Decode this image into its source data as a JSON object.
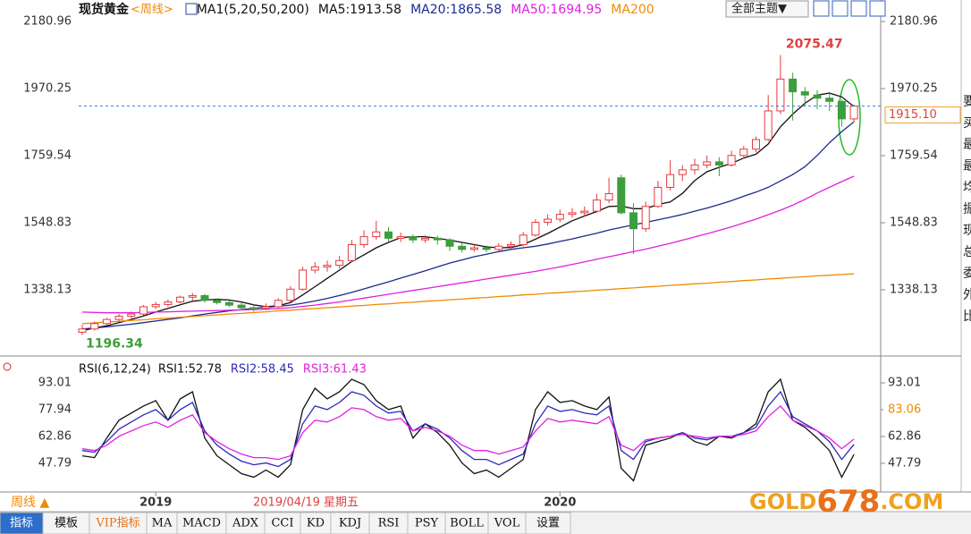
{
  "header": {
    "symbol": "现货黄金",
    "period": "<周线>"
  },
  "theme_button": "全部主题▼",
  "chart_data": [
    {
      "type": "candlestick",
      "legend_title": "MA1(5,20,50,200)",
      "categories": [
        null,
        null,
        null,
        null,
        null,
        null,
        "2019",
        null,
        null,
        null,
        null,
        null,
        null,
        null,
        null,
        null,
        null,
        null,
        null,
        null,
        null,
        null,
        null,
        null,
        null,
        null,
        null,
        null,
        null,
        null,
        null,
        null,
        null,
        null,
        null,
        null,
        null,
        null,
        null,
        "2020",
        null,
        null,
        null,
        null,
        null,
        null,
        null,
        null,
        null,
        null,
        null,
        null,
        null,
        null,
        null,
        null,
        null,
        null,
        null,
        null,
        null,
        null,
        null,
        null
      ],
      "open": [
        1205,
        1215,
        1232,
        1245,
        1255,
        1262,
        1285,
        1292,
        1300,
        1315,
        1320,
        1305,
        1298,
        1290,
        1282,
        1280,
        1285,
        1305,
        1340,
        1400,
        1410,
        1415,
        1430,
        1480,
        1505,
        1520,
        1500,
        1505,
        1495,
        1500,
        1495,
        1475,
        1465,
        1470,
        1465,
        1475,
        1480,
        1510,
        1550,
        1560,
        1575,
        1580,
        1585,
        1620,
        1690,
        1580,
        1530,
        1600,
        1660,
        1700,
        1715,
        1730,
        1740,
        1730,
        1760,
        1780,
        1810,
        1900,
        2000,
        1960,
        1950,
        1940,
        1930,
        1875
      ],
      "high": [
        1228,
        1238,
        1250,
        1262,
        1270,
        1290,
        1300,
        1308,
        1320,
        1328,
        1325,
        1312,
        1305,
        1298,
        1292,
        1295,
        1312,
        1350,
        1410,
        1425,
        1430,
        1445,
        1495,
        1525,
        1555,
        1535,
        1518,
        1512,
        1510,
        1508,
        1500,
        1485,
        1480,
        1478,
        1485,
        1490,
        1520,
        1560,
        1575,
        1590,
        1595,
        1600,
        1640,
        1690,
        1700,
        1610,
        1615,
        1680,
        1745,
        1730,
        1750,
        1760,
        1755,
        1775,
        1790,
        1820,
        1950,
        2075.47,
        2020,
        1975,
        1965,
        1960,
        1935,
        1920
      ],
      "low": [
        1196.34,
        1210,
        1225,
        1238,
        1248,
        1258,
        1278,
        1285,
        1295,
        1305,
        1298,
        1292,
        1284,
        1276,
        1270,
        1274,
        1280,
        1300,
        1335,
        1390,
        1395,
        1405,
        1425,
        1470,
        1495,
        1490,
        1488,
        1485,
        1485,
        1480,
        1460,
        1455,
        1458,
        1456,
        1460,
        1468,
        1475,
        1505,
        1540,
        1550,
        1565,
        1568,
        1580,
        1610,
        1575,
        1450,
        1520,
        1595,
        1650,
        1680,
        1700,
        1720,
        1695,
        1725,
        1750,
        1770,
        1805,
        1890,
        1870,
        1915,
        1905,
        1900,
        1850,
        1865
      ],
      "close": [
        1215,
        1232,
        1245,
        1255,
        1262,
        1285,
        1292,
        1300,
        1315,
        1320,
        1305,
        1298,
        1290,
        1282,
        1280,
        1285,
        1305,
        1340,
        1400,
        1410,
        1415,
        1430,
        1480,
        1505,
        1520,
        1500,
        1505,
        1495,
        1500,
        1495,
        1475,
        1465,
        1470,
        1465,
        1475,
        1480,
        1510,
        1550,
        1560,
        1575,
        1580,
        1585,
        1620,
        1640,
        1580,
        1530,
        1600,
        1660,
        1700,
        1715,
        1730,
        1740,
        1730,
        1760,
        1780,
        1810,
        1900,
        2000,
        1960,
        1950,
        1940,
        1930,
        1875,
        1915.1
      ],
      "up_color": "#e8383d",
      "down_color": "#3c9e3c",
      "price_label": "1915.10",
      "series": [
        {
          "name": "MA5:1913.58",
          "color": "#111111",
          "values": [
            1210,
            1218,
            1225,
            1235,
            1245,
            1256,
            1268,
            1280,
            1291,
            1302,
            1306,
            1308,
            1306,
            1300,
            1291,
            1285,
            1288,
            1298,
            1322,
            1348,
            1374,
            1400,
            1427,
            1448,
            1470,
            1487,
            1502,
            1505,
            1505,
            1500,
            1494,
            1487,
            1480,
            1473,
            1470,
            1471,
            1480,
            1497,
            1515,
            1535,
            1555,
            1570,
            1584,
            1600,
            1601,
            1593,
            1593,
            1606,
            1614,
            1641,
            1681,
            1709,
            1723,
            1735,
            1752,
            1764,
            1796,
            1850,
            1890,
            1924,
            1950,
            1956,
            1944,
            1913.58
          ]
        },
        {
          "name": "MA20:1865.58",
          "color": "#1b2b8f",
          "values": [
            1215,
            1218,
            1222,
            1226,
            1230,
            1235,
            1240,
            1245,
            1250,
            1256,
            1262,
            1267,
            1272,
            1276,
            1280,
            1283,
            1286,
            1290,
            1296,
            1303,
            1311,
            1320,
            1330,
            1341,
            1352,
            1363,
            1375,
            1386,
            1398,
            1410,
            1422,
            1432,
            1442,
            1450,
            1458,
            1465,
            1470,
            1475,
            1482,
            1490,
            1498,
            1507,
            1516,
            1526,
            1534,
            1542,
            1550,
            1558,
            1566,
            1575,
            1585,
            1595,
            1606,
            1618,
            1632,
            1645,
            1660,
            1680,
            1700,
            1725,
            1760,
            1800,
            1835,
            1865.58
          ]
        },
        {
          "name": "MA50:1694.95",
          "color": "#e020e0",
          "values": [
            1268,
            1267,
            1266,
            1266,
            1266,
            1267,
            1268,
            1269,
            1270,
            1271,
            1272,
            1273,
            1274,
            1275,
            1276,
            1277,
            1279,
            1282,
            1286,
            1290,
            1295,
            1300,
            1306,
            1312,
            1318,
            1324,
            1330,
            1336,
            1342,
            1348,
            1354,
            1360,
            1366,
            1372,
            1378,
            1384,
            1390,
            1396,
            1403,
            1410,
            1418,
            1426,
            1434,
            1442,
            1450,
            1458,
            1466,
            1475,
            1484,
            1494,
            1504,
            1514,
            1525,
            1536,
            1548,
            1560,
            1574,
            1588,
            1604,
            1622,
            1642,
            1660,
            1678,
            1694.95
          ]
        },
        {
          "name": "MA200",
          "color": "#f08a00",
          "values": [
            1232,
            1234,
            1237,
            1239,
            1242,
            1244,
            1247,
            1249,
            1252,
            1254,
            1257,
            1259,
            1262,
            1264,
            1267,
            1269,
            1272,
            1274,
            1277,
            1279,
            1282,
            1284,
            1287,
            1289,
            1292,
            1294,
            1297,
            1299,
            1302,
            1304,
            1307,
            1309,
            1312,
            1314,
            1317,
            1319,
            1322,
            1324,
            1327,
            1329,
            1332,
            1334,
            1337,
            1339,
            1342,
            1344,
            1347,
            1349,
            1352,
            1354,
            1357,
            1359,
            1362,
            1364,
            1367,
            1369,
            1372,
            1374,
            1377,
            1379,
            1382,
            1384,
            1386,
            1388
          ]
        }
      ],
      "ylim": [
        1138.6,
        2220.3
      ],
      "yticks": [
        1338.13,
        1548.83,
        1759.54,
        1970.25,
        2180.96
      ]
    },
    {
      "type": "line",
      "title": "RSI(6,12,24)",
      "series": [
        {
          "name": "RSI1:52.78",
          "color": "#111111",
          "values": [
            52,
            51,
            62,
            72,
            76,
            80,
            83,
            72,
            84,
            88,
            62,
            52,
            47,
            42,
            40,
            44,
            40,
            47,
            78,
            90,
            84,
            88,
            95,
            92,
            83,
            78,
            80,
            62,
            70,
            65,
            58,
            48,
            42,
            44,
            40,
            45,
            50,
            78,
            88,
            82,
            83,
            80,
            78,
            85,
            45,
            38,
            58,
            60,
            62,
            65,
            60,
            58,
            63,
            62,
            65,
            70,
            88,
            95,
            72,
            68,
            62,
            55,
            40,
            52.78
          ]
        },
        {
          "name": "RSI2:58.45",
          "color": "#2a2ab8",
          "values": [
            55,
            54,
            60,
            67,
            71,
            75,
            78,
            72,
            78,
            82,
            66,
            58,
            53,
            49,
            47,
            48,
            46,
            50,
            70,
            80,
            78,
            82,
            88,
            86,
            80,
            76,
            77,
            66,
            70,
            67,
            62,
            55,
            50,
            50,
            47,
            50,
            53,
            70,
            80,
            77,
            78,
            76,
            75,
            80,
            55,
            50,
            60,
            62,
            63,
            65,
            62,
            61,
            63,
            63,
            65,
            68,
            80,
            88,
            74,
            70,
            66,
            60,
            50,
            58.45
          ]
        },
        {
          "name": "RSI3:61.43",
          "color": "#e020e0",
          "values": [
            56,
            55,
            58,
            63,
            66,
            69,
            71,
            68,
            72,
            75,
            65,
            60,
            56,
            53,
            51,
            51,
            50,
            52,
            65,
            72,
            71,
            74,
            79,
            78,
            74,
            72,
            73,
            66,
            68,
            66,
            63,
            58,
            55,
            55,
            53,
            55,
            57,
            66,
            73,
            71,
            72,
            71,
            70,
            74,
            58,
            55,
            61,
            62,
            63,
            64,
            63,
            62,
            63,
            63,
            64,
            66,
            74,
            80,
            72,
            69,
            66,
            62,
            56,
            61.43
          ]
        }
      ],
      "ylim": [
        32.72,
        104.56
      ],
      "yticks": [
        47.79,
        62.86,
        77.94,
        93.01
      ],
      "cursor_value": "83.06"
    }
  ],
  "cursor_date": "2019/04/19 星期五",
  "period_selector": "周线 ▲",
  "toolbar": [
    "指标",
    "模板",
    "VIP指标",
    "MA",
    "MACD",
    "ADX",
    "CCI",
    "KD",
    "KDJ",
    "RSI",
    "PSY",
    "BOLL",
    "VOL",
    "设置"
  ],
  "watermark": {
    "prefix": "GOLD",
    "number": "678",
    "suffix": ".COM"
  },
  "side_panel": [
    "要",
    "买",
    "最",
    "最",
    "均",
    "振",
    "现",
    "总",
    "委",
    "外",
    "比"
  ]
}
